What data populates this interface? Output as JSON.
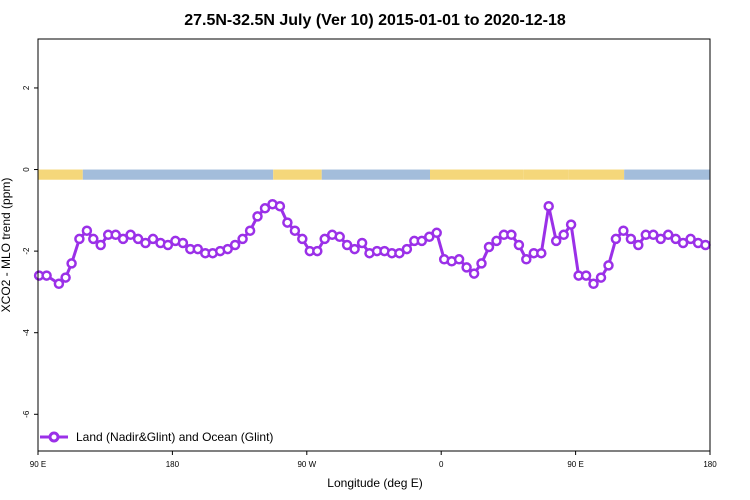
{
  "chart_data": {
    "type": "line",
    "title": "27.5N-32.5N July (Ver 10)   2015-01-01 to 2020-12-18",
    "xlabel": "Longitude (deg E)",
    "ylabel": "XCO2 - MLO trend (ppm)",
    "xlim": [
      90,
      270
    ],
    "ylim": [
      -6.9,
      3.2
    ],
    "xticks": [
      {
        "value": 90,
        "label": "90 E"
      },
      {
        "value": 126,
        "label": "180"
      },
      {
        "value": 162,
        "label": "90 W"
      },
      {
        "value": 198,
        "label": "0"
      },
      {
        "value": 234,
        "label": "90 E"
      },
      {
        "value": 270,
        "label": "180"
      }
    ],
    "yticks": [
      {
        "value": 2,
        "label": "2"
      },
      {
        "value": 0,
        "label": "0"
      },
      {
        "value": -2,
        "label": "-2"
      },
      {
        "value": -4,
        "label": "-4"
      },
      {
        "value": -6,
        "label": "-6"
      }
    ],
    "surface_band": {
      "y_top": 0,
      "y_bottom": -0.25,
      "land_color": "#f5d77a",
      "ocean_color": "#a3bddb",
      "segments": [
        {
          "from": 90,
          "to": 102,
          "type": "land"
        },
        {
          "from": 102,
          "to": 153,
          "type": "ocean"
        },
        {
          "from": 153,
          "to": 166,
          "type": "land"
        },
        {
          "from": 166,
          "to": 195,
          "type": "ocean"
        },
        {
          "from": 195,
          "to": 220,
          "type": "land"
        },
        {
          "from": 220,
          "to": 232,
          "type": "land"
        },
        {
          "from": 232,
          "to": 247,
          "type": "land"
        },
        {
          "from": 247,
          "to": 270,
          "type": "ocean"
        }
      ]
    },
    "series": [
      {
        "name": "Land (Nadir&Glint) and Ocean (Glint)",
        "color": "#9b30e8",
        "x": [
          90.3,
          92.3,
          95.6,
          97.4,
          99.0,
          101.1,
          103.1,
          104.8,
          106.8,
          108.8,
          110.8,
          112.8,
          114.8,
          116.8,
          118.8,
          120.8,
          122.8,
          124.8,
          126.8,
          128.8,
          130.8,
          132.8,
          134.8,
          136.8,
          138.8,
          140.8,
          142.8,
          144.8,
          146.8,
          148.8,
          150.8,
          152.8,
          154.8,
          156.8,
          158.8,
          160.8,
          162.8,
          164.8,
          166.8,
          168.8,
          170.8,
          172.8,
          174.8,
          176.8,
          178.8,
          180.8,
          182.8,
          184.8,
          186.8,
          188.8,
          190.8,
          192.8,
          194.8,
          196.8,
          198.8,
          200.8,
          202.8,
          204.8,
          206.8,
          208.8,
          210.8,
          212.8,
          214.8,
          216.8,
          218.8,
          220.8,
          222.8,
          224.8,
          226.8,
          228.8,
          230.8,
          232.8,
          234.8,
          236.8,
          238.8,
          240.8,
          242.8,
          244.8,
          246.8,
          248.8,
          250.8,
          252.8,
          254.8,
          256.8,
          258.8,
          260.8,
          262.8,
          264.8,
          266.8,
          268.8
        ],
        "y": [
          -2.6,
          -2.6,
          -2.8,
          -2.65,
          -2.3,
          -1.7,
          -1.5,
          -1.7,
          -1.85,
          -1.6,
          -1.6,
          -1.7,
          -1.6,
          -1.7,
          -1.8,
          -1.7,
          -1.8,
          -1.85,
          -1.75,
          -1.8,
          -1.95,
          -1.95,
          -2.05,
          -2.05,
          -2.0,
          -1.95,
          -1.85,
          -1.7,
          -1.5,
          -1.15,
          -0.95,
          -0.85,
          -0.9,
          -1.3,
          -1.5,
          -1.7,
          -2.0,
          -2.0,
          -1.7,
          -1.6,
          -1.65,
          -1.85,
          -1.95,
          -1.8,
          -2.05,
          -2.0,
          -2.0,
          -2.05,
          -2.05,
          -1.95,
          -1.75,
          -1.75,
          -1.65,
          -1.55,
          -2.2,
          -2.25,
          -2.2,
          -2.4,
          -2.55,
          -2.3,
          -1.9,
          -1.75,
          -1.6,
          -1.6,
          -1.85,
          -2.2,
          -2.05,
          -2.05,
          -0.9,
          -1.75,
          -1.6,
          -1.35,
          -2.6,
          -2.6,
          -2.8,
          -2.65,
          -2.35,
          -1.7,
          -1.5,
          -1.7,
          -1.85,
          -1.6,
          -1.6,
          -1.7,
          -1.6,
          -1.7,
          -1.8,
          -1.7,
          -1.8,
          -1.85
        ]
      }
    ],
    "legend": {
      "placement": "bottom-left"
    },
    "grid": false
  }
}
